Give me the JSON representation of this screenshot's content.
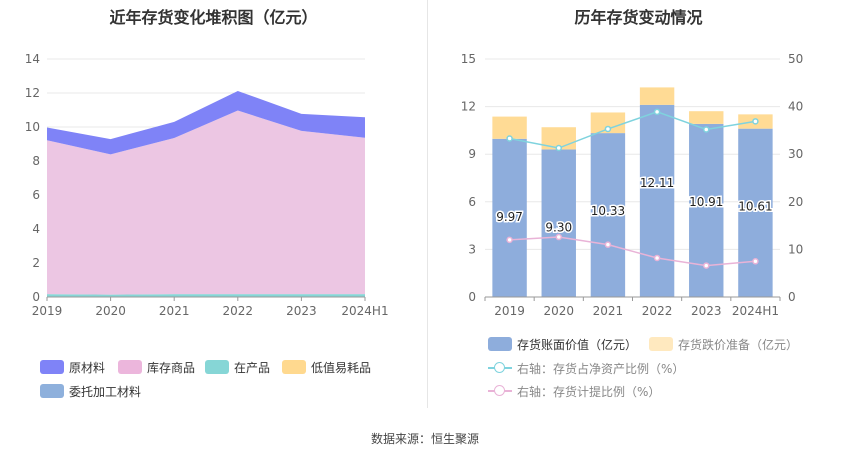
{
  "source_label": "数据来源：恒生聚源",
  "chart_data": [
    {
      "type": "area",
      "stacked": true,
      "title": "近年存货变化堆积图（亿元）",
      "categories": [
        "2019",
        "2020",
        "2021",
        "2022",
        "2023",
        "2024H1"
      ],
      "y_ticks": [
        "0",
        "2",
        "4",
        "6",
        "8",
        "10",
        "12",
        "14"
      ],
      "ylim": [
        0,
        14
      ],
      "series": [
        {
          "name": "委托加工材料",
          "color": "#8eb0dc",
          "values": [
            0.0,
            0.0,
            0.0,
            0.0,
            0.0,
            0.0
          ]
        },
        {
          "name": "低值易耗品",
          "color": "#ffd98f",
          "values": [
            0.02,
            0.02,
            0.02,
            0.02,
            0.02,
            0.02
          ]
        },
        {
          "name": "在产品",
          "color": "#86d6d6",
          "values": [
            0.15,
            0.12,
            0.15,
            0.15,
            0.15,
            0.15
          ]
        },
        {
          "name": "库存商品",
          "color": "#ecc6e3",
          "values": [
            9.05,
            8.25,
            9.18,
            10.8,
            9.6,
            9.2
          ]
        },
        {
          "name": "原材料",
          "color": "#7f83f7",
          "values": [
            0.75,
            0.9,
            0.95,
            1.15,
            1.0,
            1.2
          ]
        }
      ],
      "legend": [
        {
          "name": "原材料",
          "color": "#7f83f7"
        },
        {
          "name": "库存商品",
          "color": "#ecb6dc"
        },
        {
          "name": "在产品",
          "color": "#86d6d6"
        },
        {
          "name": "低值易耗品",
          "color": "#ffd98f"
        },
        {
          "name": "委托加工材料",
          "color": "#8eb0dc"
        }
      ]
    },
    {
      "type": "bar",
      "title": "历年存货变动情况",
      "categories": [
        "2019",
        "2020",
        "2021",
        "2022",
        "2023",
        "2024H1"
      ],
      "y_left_ticks": [
        "0",
        "3",
        "6",
        "9",
        "12",
        "15"
      ],
      "ylim_left": [
        0,
        15
      ],
      "y_right_ticks": [
        "0",
        "10",
        "20",
        "30",
        "40",
        "50"
      ],
      "ylim_right": [
        0,
        50
      ],
      "bar_series": [
        {
          "name": "存货账面价值（亿元）",
          "color": "#8eaddc",
          "values": [
            9.97,
            9.3,
            10.33,
            12.11,
            10.91,
            10.61
          ],
          "labels": [
            "9.97",
            "9.30",
            "10.33",
            "12.11",
            "10.91",
            "10.61"
          ]
        },
        {
          "name": "存货跌价准备（亿元）",
          "color": "#ffdb95",
          "values": [
            1.4,
            1.4,
            1.3,
            1.1,
            0.8,
            0.9
          ]
        }
      ],
      "line_series": [
        {
          "name": "右轴：存货占净资产比例（%）",
          "color": "#7fd3de",
          "values": [
            33.3,
            31.3,
            35.3,
            38.9,
            35.2,
            36.9
          ]
        },
        {
          "name": "右轴：存货计提比例（%）",
          "color": "#e9b3d7",
          "values": [
            12.0,
            12.6,
            11.0,
            8.2,
            6.6,
            7.5
          ]
        }
      ]
    }
  ]
}
